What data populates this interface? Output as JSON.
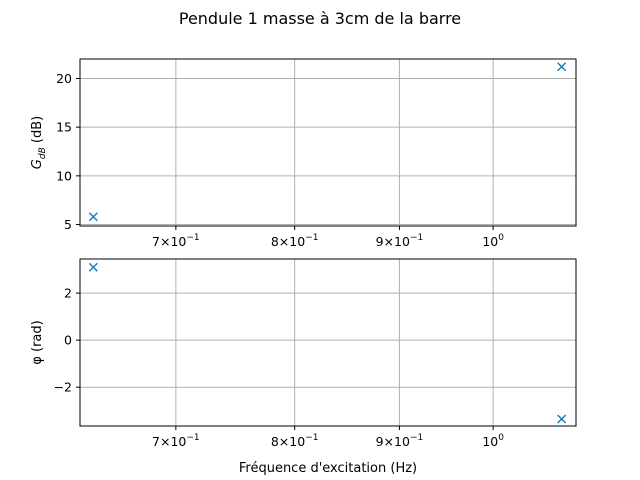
{
  "title": "Pendule 1 masse à 3cm de la barre",
  "chart_data": [
    {
      "type": "scatter",
      "xscale": "log",
      "xlim": [
        0.6285,
        1.0976
      ],
      "ylim": [
        4.85,
        22.0
      ],
      "x_ticks": [
        {
          "value": 0.7,
          "base": "7×10",
          "exp": "−1"
        },
        {
          "value": 0.8,
          "base": "8×10",
          "exp": "−1"
        },
        {
          "value": 0.9,
          "base": "9×10",
          "exp": "−1"
        },
        {
          "value": 1.0,
          "base": "10",
          "exp": "0"
        }
      ],
      "y_ticks": [
        5,
        10,
        15,
        20
      ],
      "ylabel_main": "G",
      "ylabel_sub": "dB",
      "ylabel_unit": "(dB)",
      "xlabel": "",
      "grid": true,
      "marker": "x",
      "color": "#1f77b4",
      "series": [
        {
          "x": [
            0.638,
            1.08
          ],
          "y": [
            5.8,
            21.2
          ]
        }
      ]
    },
    {
      "type": "scatter",
      "xscale": "log",
      "xlim": [
        0.6285,
        1.0976
      ],
      "ylim": [
        -3.65,
        3.45
      ],
      "x_ticks": [
        {
          "value": 0.7,
          "base": "7×10",
          "exp": "−1"
        },
        {
          "value": 0.8,
          "base": "8×10",
          "exp": "−1"
        },
        {
          "value": 0.9,
          "base": "9×10",
          "exp": "−1"
        },
        {
          "value": 1.0,
          "base": "10",
          "exp": "0"
        }
      ],
      "y_ticks": [
        -2,
        0,
        2
      ],
      "ylabel": "φ (rad)",
      "xlabel": "Fréquence d'excitation (Hz)",
      "grid": true,
      "marker": "x",
      "color": "#1f77b4",
      "series": [
        {
          "x": [
            0.638,
            1.08
          ],
          "y": [
            3.1,
            -3.35
          ]
        }
      ]
    }
  ]
}
